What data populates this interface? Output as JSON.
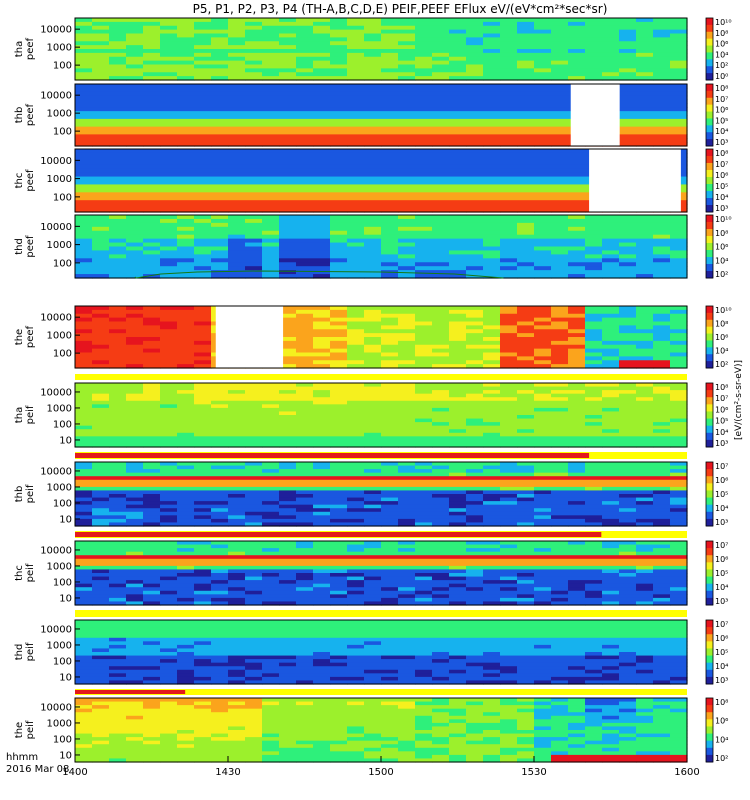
{
  "title": "P5, P1, P2, P3, P4 (TH-A,B,C,D,E) PEIF,PEEF EFlux eV/(eV*cm²*sec*sr)",
  "time_label": "hhmm",
  "date_label": "2016 Mar 08",
  "x_ticks": [
    "1400",
    "1430",
    "1500",
    "1530",
    "1600"
  ],
  "units_label": "[eV/(cm²-s-sr-eV)]",
  "colors": {
    "spectrogram_scale": [
      "#ffffff",
      "#1f1f9a",
      "#1a57e0",
      "#16b2ee",
      "#2ef07b",
      "#9cf02c",
      "#f5f01e",
      "#fba41c",
      "#f53c14",
      "#e6141e"
    ],
    "flag_bar": "#ffff00",
    "flag_red": "#e31a1c",
    "axis": "#000000"
  },
  "chart_data": [
    {
      "type": "heatmap",
      "probe": "tha",
      "species": "peef",
      "label_line1": "tha",
      "label_line2": "peef",
      "y_ticks": [
        "10000",
        "1000",
        "100"
      ],
      "colorbar_ticks": [
        "10¹⁰",
        "10⁸",
        "10⁶",
        "10⁴",
        "10²",
        "10⁰"
      ],
      "x_range": [
        "1400",
        "1600"
      ],
      "y_scale": "log"
    },
    {
      "type": "heatmap",
      "probe": "thb",
      "species": "peef",
      "label_line1": "thb",
      "label_line2": "peef",
      "y_ticks": [
        "10000",
        "1000",
        "100"
      ],
      "colorbar_ticks": [
        "10⁸",
        "10⁷",
        "10⁶",
        "10⁵",
        "10⁴",
        "10³"
      ],
      "x_range": [
        "1400",
        "1600"
      ],
      "y_scale": "log"
    },
    {
      "type": "heatmap",
      "probe": "thc",
      "species": "peef",
      "label_line1": "thc",
      "label_line2": "peef",
      "y_ticks": [
        "10000",
        "1000",
        "100"
      ],
      "colorbar_ticks": [
        "10⁸",
        "10⁷",
        "10⁶",
        "10⁵",
        "10⁴",
        "10³"
      ],
      "x_range": [
        "1400",
        "1600"
      ],
      "y_scale": "log"
    },
    {
      "type": "heatmap",
      "probe": "thd",
      "species": "peef",
      "label_line1": "thd",
      "label_line2": "peef",
      "y_ticks": [
        "10000",
        "1000",
        "100"
      ],
      "colorbar_ticks": [
        "10¹⁰",
        "10⁸",
        "10⁶",
        "10⁴",
        "10²"
      ],
      "x_range": [
        "1400",
        "1600"
      ],
      "y_scale": "log"
    },
    {
      "type": "heatmap",
      "probe": "the",
      "species": "peef",
      "label_line1": "the",
      "label_line2": "peef",
      "y_ticks": [
        "10000",
        "1000",
        "100"
      ],
      "colorbar_ticks": [
        "10¹⁰",
        "10⁸",
        "10⁶",
        "10⁴",
        "10²"
      ],
      "x_range": [
        "1400",
        "1600"
      ],
      "y_scale": "log"
    },
    {
      "type": "heatmap",
      "probe": "tha",
      "species": "peif",
      "label_line1": "tha",
      "label_line2": "peif",
      "y_ticks": [
        "10000",
        "1000",
        "100",
        "10"
      ],
      "colorbar_ticks": [
        "10⁸",
        "10⁷",
        "10⁶",
        "10⁵",
        "10⁴",
        "10³"
      ],
      "x_range": [
        "1400",
        "1600"
      ],
      "y_scale": "log"
    },
    {
      "type": "heatmap",
      "probe": "thb",
      "species": "peif",
      "label_line1": "thb",
      "label_line2": "peif",
      "y_ticks": [
        "10000",
        "1000",
        "100",
        "10"
      ],
      "colorbar_ticks": [
        "10⁷",
        "10⁶",
        "10⁵",
        "10⁴",
        "10³"
      ],
      "x_range": [
        "1400",
        "1600"
      ],
      "y_scale": "log"
    },
    {
      "type": "heatmap",
      "probe": "thc",
      "species": "peif",
      "label_line1": "thc",
      "label_line2": "peif",
      "y_ticks": [
        "10000",
        "1000",
        "100",
        "10"
      ],
      "colorbar_ticks": [
        "10⁷",
        "10⁶",
        "10⁵",
        "10⁴",
        "10³"
      ],
      "x_range": [
        "1400",
        "1600"
      ],
      "y_scale": "log"
    },
    {
      "type": "heatmap",
      "probe": "thd",
      "species": "peif",
      "label_line1": "thd",
      "label_line2": "peif",
      "y_ticks": [
        "10000",
        "1000",
        "100",
        "10"
      ],
      "colorbar_ticks": [
        "10⁷",
        "10⁶",
        "10⁵",
        "10⁴",
        "10³"
      ],
      "x_range": [
        "1400",
        "1600"
      ],
      "y_scale": "log"
    },
    {
      "type": "heatmap",
      "probe": "the",
      "species": "peif",
      "label_line1": "the",
      "label_line2": "peif",
      "y_ticks": [
        "10000",
        "1000",
        "100",
        "10"
      ],
      "colorbar_ticks": [
        "10⁸",
        "10⁶",
        "10⁴",
        "10²"
      ],
      "x_range": [
        "1400",
        "1600"
      ],
      "y_scale": "log"
    }
  ]
}
